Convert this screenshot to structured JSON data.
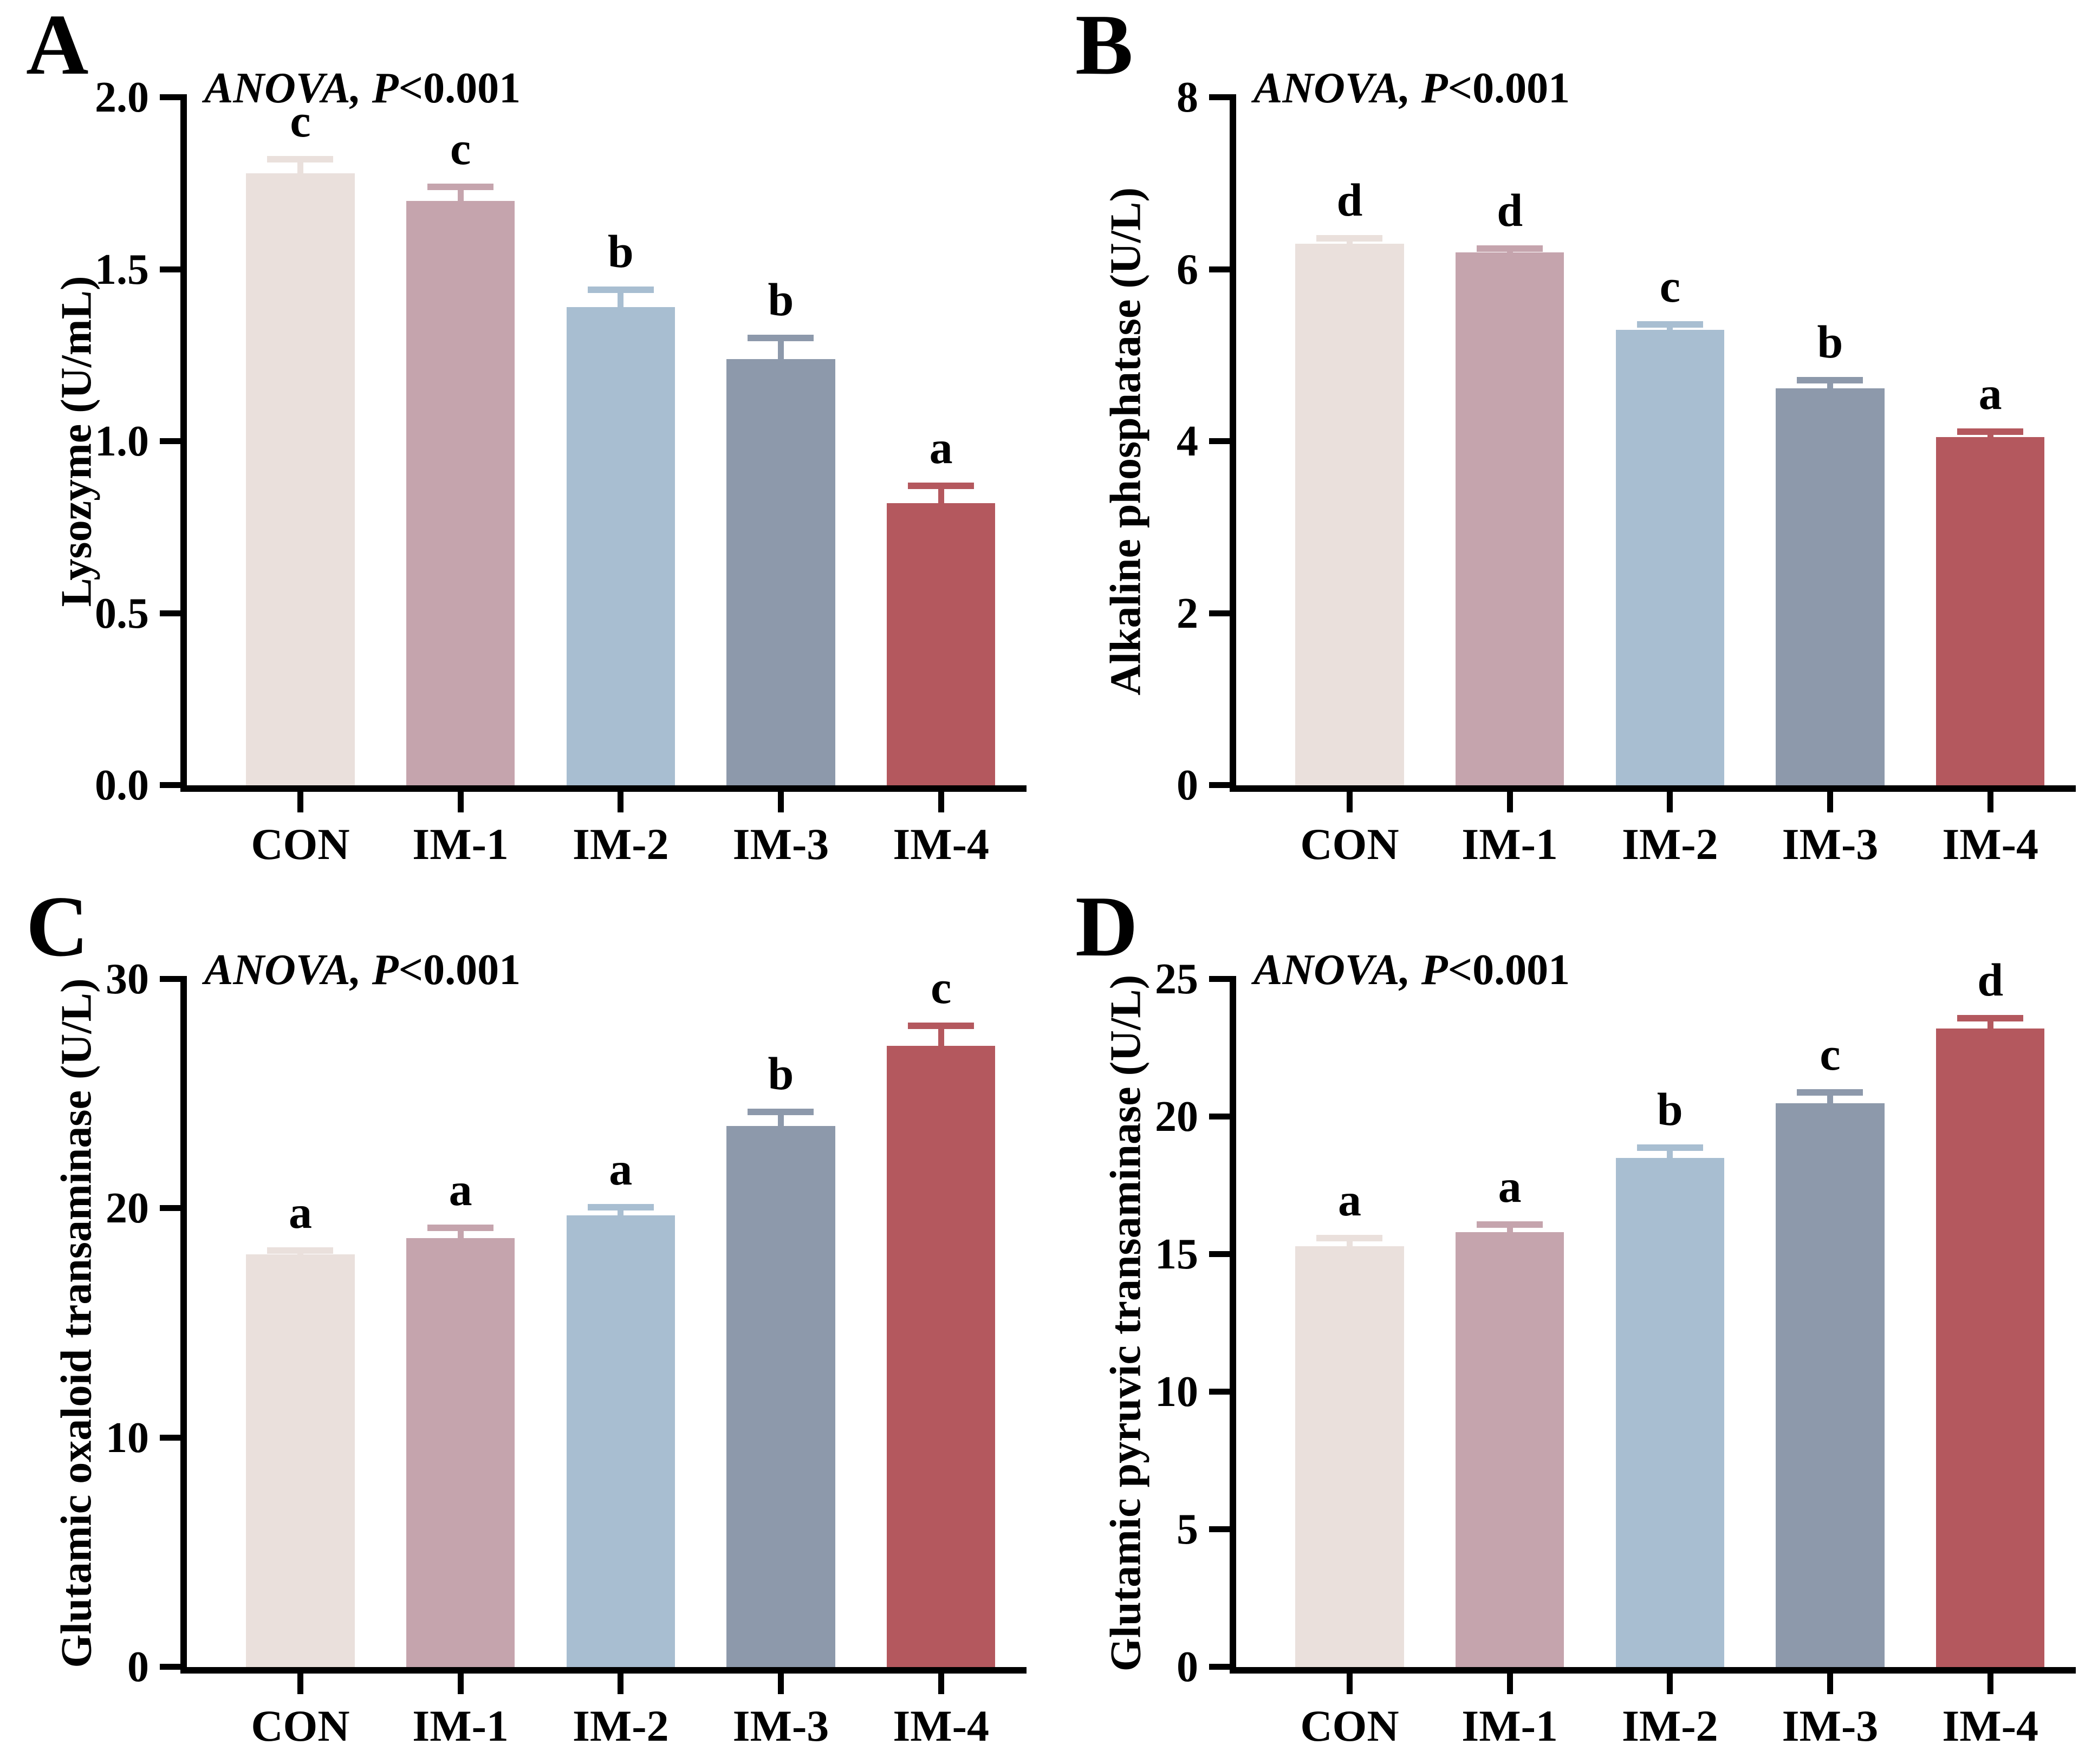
{
  "figure": {
    "background": "#ffffff",
    "axis_color": "#000000",
    "text_color": "#000000",
    "palette": {
      "CON": "#EAE0DC",
      "IM-1": "#C5A4AD",
      "IM-2": "#A8BED1",
      "IM-3": "#8D99AB",
      "IM-4": "#B4585E"
    }
  },
  "chart_data": [
    {
      "type": "bar",
      "panel_letter": "A",
      "annotation_italic": "ANOVA, P",
      "annotation_rest": "<0.001",
      "ylabel": "Lysozyme (U/mL)",
      "xlabel": "",
      "ylim": [
        0,
        2.0
      ],
      "grid": false,
      "legend_position": "none",
      "yticks": [
        {
          "value": 0.0,
          "label": "0.0"
        },
        {
          "value": 0.5,
          "label": "0.5"
        },
        {
          "value": 1.0,
          "label": "1.0"
        },
        {
          "value": 1.5,
          "label": "1.5"
        },
        {
          "value": 2.0,
          "label": "2.0"
        }
      ],
      "categories": [
        "CON",
        "IM-1",
        "IM-2",
        "IM-3",
        "IM-4"
      ],
      "values": [
        1.78,
        1.7,
        1.39,
        1.24,
        0.82
      ],
      "errors": [
        0.05,
        0.05,
        0.06,
        0.07,
        0.06
      ],
      "sig_letters": [
        "c",
        "c",
        "b",
        "b",
        "a"
      ],
      "bar_colors": [
        "#EAE0DC",
        "#C5A4AD",
        "#A8BED1",
        "#8D99AB",
        "#B4585E"
      ]
    },
    {
      "type": "bar",
      "panel_letter": "B",
      "annotation_italic": "ANOVA, P",
      "annotation_rest": "<0.001",
      "ylabel": "Alkaline phosphatase  (U/L)",
      "xlabel": "",
      "ylim": [
        0,
        8
      ],
      "grid": false,
      "legend_position": "none",
      "yticks": [
        {
          "value": 0,
          "label": "0"
        },
        {
          "value": 2,
          "label": "2"
        },
        {
          "value": 4,
          "label": "4"
        },
        {
          "value": 6,
          "label": "6"
        },
        {
          "value": 8,
          "label": "8"
        }
      ],
      "categories": [
        "CON",
        "IM-1",
        "IM-2",
        "IM-3",
        "IM-4"
      ],
      "values": [
        6.3,
        6.2,
        5.3,
        4.62,
        4.05
      ],
      "errors": [
        0.1,
        0.08,
        0.1,
        0.13,
        0.1
      ],
      "sig_letters": [
        "d",
        "d",
        "c",
        "b",
        "a"
      ],
      "bar_colors": [
        "#EAE0DC",
        "#C5A4AD",
        "#A8BED1",
        "#8D99AB",
        "#B4585E"
      ]
    },
    {
      "type": "bar",
      "panel_letter": "C",
      "annotation_italic": "ANOVA, P",
      "annotation_rest": "<0.001",
      "ylabel": "Glutamic oxaloid transaminase (U/L)",
      "xlabel": "",
      "ylim": [
        0,
        30
      ],
      "grid": false,
      "legend_position": "none",
      "yticks": [
        {
          "value": 0,
          "label": "0"
        },
        {
          "value": 10,
          "label": "10"
        },
        {
          "value": 20,
          "label": "20"
        },
        {
          "value": 30,
          "label": "30"
        }
      ],
      "categories": [
        "CON",
        "IM-1",
        "IM-2",
        "IM-3",
        "IM-4"
      ],
      "values": [
        18.0,
        18.7,
        19.7,
        23.6,
        27.1
      ],
      "errors": [
        0.3,
        0.6,
        0.5,
        0.75,
        1.0
      ],
      "sig_letters": [
        "a",
        "a",
        "a",
        "b",
        "c"
      ],
      "bar_colors": [
        "#EAE0DC",
        "#C5A4AD",
        "#A8BED1",
        "#8D99AB",
        "#B4585E"
      ]
    },
    {
      "type": "bar",
      "panel_letter": "D",
      "annotation_italic": "ANOVA, P",
      "annotation_rest": "<0.001",
      "ylabel": "Glutamic pyruvic transaminase (U/L)",
      "xlabel": "",
      "ylim": [
        0,
        25
      ],
      "grid": false,
      "legend_position": "none",
      "yticks": [
        {
          "value": 0,
          "label": "0"
        },
        {
          "value": 5,
          "label": "5"
        },
        {
          "value": 10,
          "label": "10"
        },
        {
          "value": 15,
          "label": "15"
        },
        {
          "value": 20,
          "label": "20"
        },
        {
          "value": 25,
          "label": "25"
        }
      ],
      "categories": [
        "CON",
        "IM-1",
        "IM-2",
        "IM-3",
        "IM-4"
      ],
      "values": [
        15.3,
        15.8,
        18.5,
        20.5,
        23.2
      ],
      "errors": [
        0.4,
        0.4,
        0.5,
        0.5,
        0.5
      ],
      "sig_letters": [
        "a",
        "a",
        "b",
        "c",
        "d"
      ],
      "bar_colors": [
        "#EAE0DC",
        "#C5A4AD",
        "#A8BED1",
        "#8D99AB",
        "#B4585E"
      ]
    }
  ]
}
